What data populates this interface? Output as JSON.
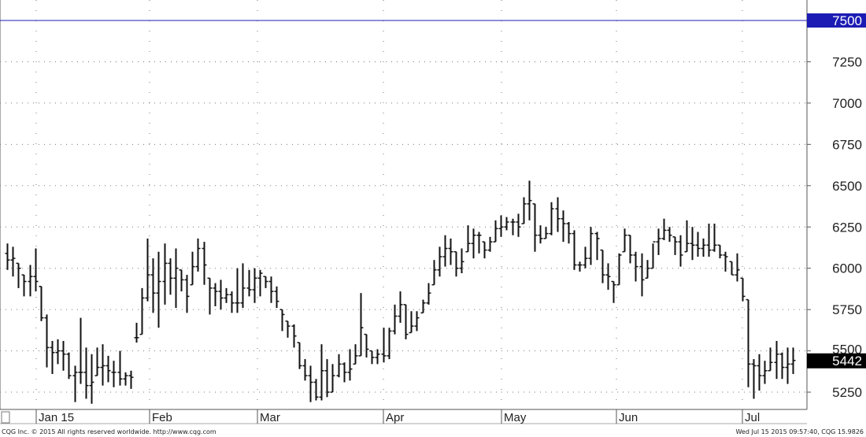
{
  "chart_data": {
    "type": "ohlc-bar",
    "ylim": [
      5150,
      7600
    ],
    "y_ticks": [
      5250,
      5500,
      5750,
      6000,
      6250,
      6500,
      6750,
      7000,
      7250,
      7500
    ],
    "grid": true,
    "x_labels": [
      "Jan 15",
      "Feb",
      "Mar",
      "Apr",
      "May",
      "Jun",
      "Jul"
    ],
    "reference_line": {
      "value": 7500,
      "label": "7500",
      "color": "#1c1cb4"
    },
    "last_price": {
      "value": 5442,
      "label": "5442",
      "color": "#000000"
    },
    "bars_ohlc": [
      [
        6090,
        6150,
        5990,
        6050
      ],
      [
        6050,
        6130,
        5950,
        6060
      ],
      [
        6030,
        6030,
        5880,
        6000
      ],
      [
        5960,
        5960,
        5830,
        5920
      ],
      [
        5920,
        6020,
        5830,
        5950
      ],
      [
        5950,
        6120,
        5860,
        5920
      ],
      [
        5890,
        5890,
        5680,
        5700
      ],
      [
        5700,
        5720,
        5400,
        5520
      ],
      [
        5520,
        5560,
        5360,
        5490
      ],
      [
        5490,
        5570,
        5420,
        5500
      ],
      [
        5500,
        5560,
        5380,
        5480
      ],
      [
        5480,
        5490,
        5330,
        5350
      ],
      [
        5350,
        5410,
        5190,
        5370
      ],
      [
        5370,
        5700,
        5300,
        5370
      ],
      [
        5370,
        5520,
        5210,
        5290
      ],
      [
        5290,
        5480,
        5180,
        5310
      ],
      [
        5350,
        5520,
        5350,
        5400
      ],
      [
        5400,
        5540,
        5290,
        5410
      ],
      [
        5410,
        5470,
        5310,
        5380
      ],
      [
        5370,
        5440,
        5280,
        5370
      ],
      [
        5370,
        5500,
        5290,
        5330
      ],
      [
        5330,
        5370,
        5290,
        5350
      ],
      [
        5350,
        5380,
        5270,
        5340
      ],
      [
        5580,
        5670,
        5550,
        5580
      ],
      [
        5600,
        5880,
        5600,
        5820
      ],
      [
        5820,
        6180,
        5800,
        5960
      ],
      [
        5960,
        6060,
        5730,
        5850
      ],
      [
        5850,
        6100,
        5640,
        5920
      ],
      [
        5920,
        6150,
        5780,
        6030
      ],
      [
        6030,
        6060,
        5840,
        5940
      ],
      [
        5940,
        6120,
        5760,
        6000
      ],
      [
        5990,
        5990,
        5860,
        5930
      ],
      [
        5930,
        5960,
        5730,
        5830
      ],
      [
        5900,
        6100,
        5900,
        6010
      ],
      [
        6010,
        6180,
        5980,
        6120
      ],
      [
        6120,
        6160,
        5900,
        6020
      ],
      [
        5940,
        5940,
        5720,
        5880
      ],
      [
        5880,
        5910,
        5770,
        5860
      ],
      [
        5860,
        5930,
        5750,
        5820
      ],
      [
        5820,
        5880,
        5790,
        5840
      ],
      [
        5840,
        5860,
        5730,
        5790
      ],
      [
        5790,
        6000,
        5730,
        5790
      ],
      [
        5790,
        6030,
        5760,
        5880
      ],
      [
        5880,
        5990,
        5830,
        5870
      ],
      [
        5870,
        6000,
        5790,
        5940
      ],
      [
        5940,
        5990,
        5830,
        5970
      ],
      [
        5950,
        5950,
        5880,
        5920
      ],
      [
        5920,
        5950,
        5790,
        5860
      ],
      [
        5860,
        5890,
        5760,
        5800
      ],
      [
        5750,
        5750,
        5620,
        5720
      ],
      [
        5680,
        5680,
        5580,
        5650
      ],
      [
        5650,
        5660,
        5520,
        5590
      ],
      [
        5550,
        5550,
        5390,
        5410
      ],
      [
        5410,
        5450,
        5320,
        5350
      ],
      [
        5350,
        5410,
        5190,
        5310
      ],
      [
        5310,
        5330,
        5200,
        5220
      ],
      [
        5220,
        5540,
        5200,
        5380
      ],
      [
        5380,
        5450,
        5220,
        5250
      ],
      [
        5250,
        5420,
        5250,
        5350
      ],
      [
        5350,
        5480,
        5340,
        5420
      ],
      [
        5420,
        5430,
        5310,
        5370
      ],
      [
        5370,
        5510,
        5320,
        5390
      ],
      [
        5420,
        5540,
        5420,
        5470
      ],
      [
        5470,
        5850,
        5470,
        5640
      ],
      [
        5600,
        5600,
        5460,
        5510
      ],
      [
        5500,
        5500,
        5420,
        5460
      ],
      [
        5460,
        5510,
        5420,
        5480
      ],
      [
        5480,
        5640,
        5430,
        5470
      ],
      [
        5470,
        5640,
        5450,
        5620
      ],
      [
        5620,
        5780,
        5600,
        5710
      ],
      [
        5710,
        5860,
        5670,
        5780
      ],
      [
        5780,
        5780,
        5570,
        5600
      ],
      [
        5610,
        5740,
        5610,
        5650
      ],
      [
        5650,
        5740,
        5620,
        5700
      ],
      [
        5730,
        5810,
        5730,
        5790
      ],
      [
        5790,
        5910,
        5780,
        5850
      ],
      [
        5900,
        6050,
        5900,
        5990
      ],
      [
        5990,
        6130,
        5950,
        6070
      ],
      [
        6070,
        6200,
        6010,
        6120
      ],
      [
        6120,
        6180,
        6020,
        6100
      ],
      [
        6100,
        6100,
        5950,
        6000
      ],
      [
        6000,
        6120,
        5970,
        6040
      ],
      [
        6100,
        6260,
        6100,
        6150
      ],
      [
        6150,
        6240,
        6060,
        6200
      ],
      [
        6200,
        6220,
        6090,
        6200
      ],
      [
        6160,
        6160,
        6060,
        6110
      ],
      [
        6110,
        6190,
        6100,
        6160
      ],
      [
        6160,
        6290,
        6160,
        6240
      ],
      [
        6240,
        6320,
        6190,
        6250
      ],
      [
        6250,
        6310,
        6230,
        6280
      ],
      [
        6280,
        6300,
        6200,
        6280
      ],
      [
        6280,
        6330,
        6190,
        6250
      ],
      [
        6270,
        6430,
        6270,
        6390
      ],
      [
        6390,
        6530,
        6290,
        6410
      ],
      [
        6390,
        6390,
        6100,
        6200
      ],
      [
        6200,
        6260,
        6150,
        6180
      ],
      [
        6180,
        6250,
        6180,
        6210
      ],
      [
        6210,
        6400,
        6200,
        6360
      ],
      [
        6360,
        6430,
        6220,
        6300
      ],
      [
        6300,
        6350,
        6160,
        6270
      ],
      [
        6270,
        6280,
        6150,
        6210
      ],
      [
        6210,
        6230,
        5990,
        6020
      ],
      [
        6020,
        6040,
        5980,
        6020
      ],
      [
        6020,
        6130,
        6000,
        6060
      ],
      [
        6060,
        6250,
        6020,
        6210
      ],
      [
        6210,
        6220,
        6050,
        6180
      ],
      [
        6110,
        6110,
        5910,
        5960
      ],
      [
        5960,
        6030,
        5870,
        5950
      ],
      [
        5920,
        5920,
        5790,
        5900
      ],
      [
        5900,
        6090,
        5900,
        6080
      ],
      [
        6100,
        6240,
        6100,
        6200
      ],
      [
        6200,
        6200,
        6030,
        6080
      ],
      [
        6080,
        6100,
        5920,
        6010
      ],
      [
        6010,
        6090,
        5830,
        5930
      ],
      [
        5940,
        6050,
        5940,
        6000
      ],
      [
        6000,
        6150,
        6000,
        6160
      ],
      [
        6160,
        6240,
        6080,
        6180
      ],
      [
        6180,
        6300,
        6170,
        6230
      ],
      [
        6230,
        6250,
        6160,
        6200
      ],
      [
        6190,
        6190,
        6080,
        6160
      ],
      [
        6160,
        6200,
        6010,
        6080
      ],
      [
        6100,
        6290,
        6100,
        6150
      ],
      [
        6150,
        6250,
        6050,
        6140
      ],
      [
        6140,
        6220,
        6070,
        6120
      ],
      [
        6120,
        6180,
        6070,
        6140
      ],
      [
        6140,
        6270,
        6070,
        6110
      ],
      [
        6110,
        6270,
        6100,
        6140
      ],
      [
        6140,
        6140,
        6060,
        6080
      ],
      [
        6080,
        6100,
        5980,
        6070
      ],
      [
        6040,
        6040,
        5960,
        5960
      ],
      [
        5960,
        6090,
        5920,
        5990
      ],
      [
        5940,
        5940,
        5800,
        5830
      ],
      [
        5810,
        5810,
        5280,
        5420
      ],
      [
        5420,
        5450,
        5210,
        5410
      ],
      [
        5410,
        5480,
        5260,
        5350
      ],
      [
        5350,
        5440,
        5300,
        5380
      ],
      [
        5380,
        5520,
        5380,
        5430
      ],
      [
        5430,
        5560,
        5330,
        5480
      ],
      [
        5480,
        5490,
        5330,
        5400
      ],
      [
        5400,
        5520,
        5300,
        5420
      ],
      [
        5420,
        5520,
        5360,
        5442
      ]
    ]
  },
  "footer": {
    "copyright": "CQG Inc. © 2015 All rights reserved worldwide. http://www.cqg.com",
    "timestamp": "Wed Jul 15 2015 09:57:40, CQG 15.9826"
  }
}
